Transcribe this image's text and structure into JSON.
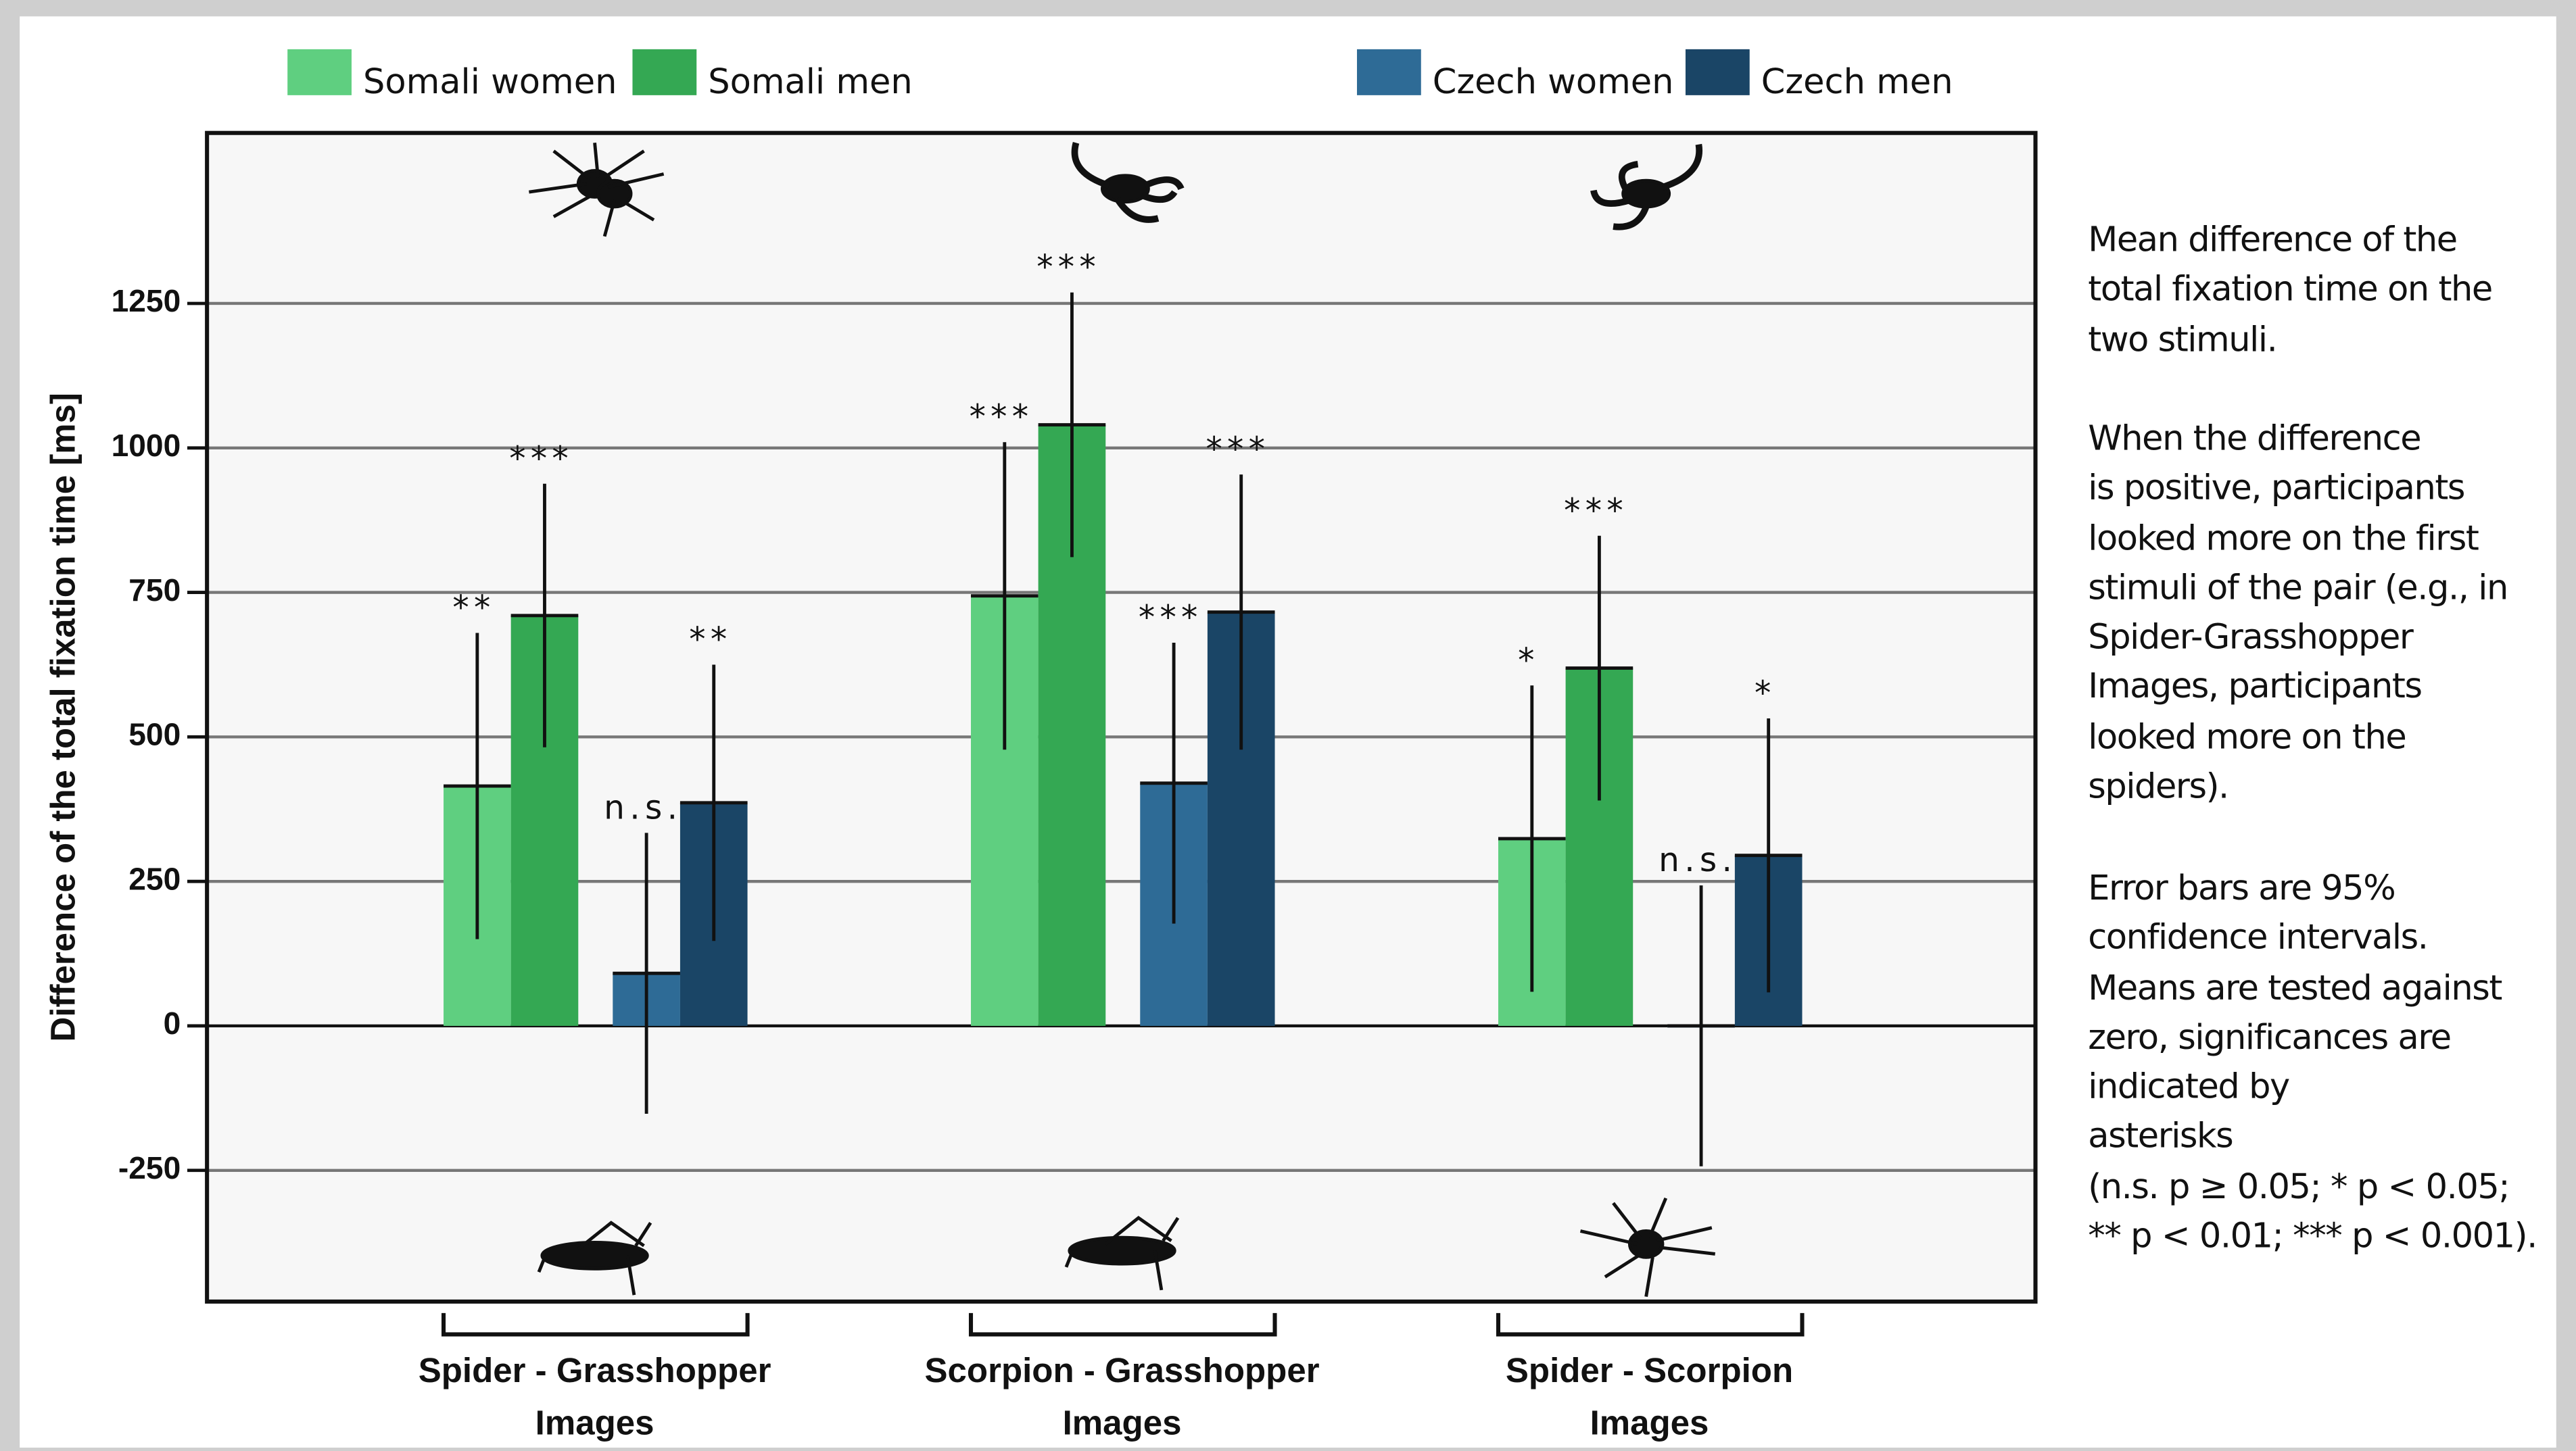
{
  "chart_data": {
    "type": "bar",
    "y_label": "Difference of the total fixation time [ms]",
    "categories": [
      "Spider - Grasshopper\nImages",
      "Scorpion - Grasshopper\nImages",
      "Spider - Scorpion\nImages"
    ],
    "series": [
      {
        "name": "Somali women",
        "color": "#5fcf80",
        "values": [
          415,
          744,
          324
        ],
        "errors": [
          265,
          266,
          265
        ],
        "significance": [
          "**",
          "***",
          "*"
        ]
      },
      {
        "name": "Somali men",
        "color": "#34a853",
        "values": [
          710,
          1040,
          619
        ],
        "errors": [
          228,
          229,
          229
        ],
        "significance": [
          "***",
          "***",
          "***"
        ]
      },
      {
        "name": "Czech women",
        "color": "#2e6b96",
        "values": [
          91,
          420,
          0
        ],
        "errors": [
          243,
          243,
          243
        ],
        "significance": [
          "n.s.",
          "***",
          "n.s."
        ]
      },
      {
        "name": "Czech men",
        "color": "#1a4566",
        "values": [
          386,
          716,
          295
        ],
        "errors": [
          239,
          238,
          237
        ],
        "significance": [
          "**",
          "***",
          "*"
        ]
      }
    ],
    "ylim": [
      -477,
      1545
    ],
    "yticks": [
      -250,
      0,
      250,
      500,
      750,
      1000,
      1250
    ],
    "grid": true,
    "notes": [
      "Mean difference of the\ntotal fixation time on the\ntwo stimuli.",
      "When the difference\nis positive, participants\nlooked more on the first\nstimuli of the pair (e.g., in\nSpider-Grasshopper\nImages, participants\nlooked more on the\nspiders).",
      "Error bars are 95%\nconfidence intervals.\nMeans are tested against\nzero, significances are\nindicated by\nasterisks\n(n.s. p ≥ 0.05; * p < 0.05;\n** p < 0.01; *** p < 0.001)."
    ]
  }
}
